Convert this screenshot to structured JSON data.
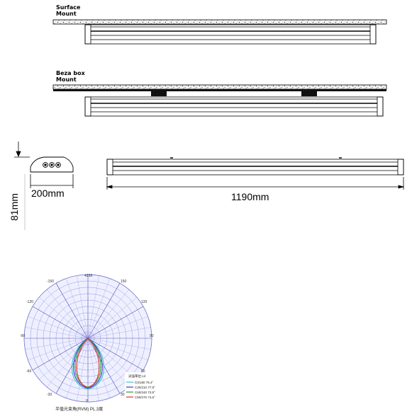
{
  "mounting": {
    "surface": {
      "line1": "Surface",
      "line2": "Mount"
    },
    "beza_box": {
      "line1": "Beza box",
      "line2": "Mount"
    }
  },
  "dimensions": {
    "width": "200mm",
    "height": "81mm",
    "length": "1190mm"
  },
  "polar_plot": {
    "top_value": "4238",
    "angles": {
      "deg_150": "150",
      "deg_minus_150": "-150",
      "deg_120": "120",
      "deg_minus_120": "-120",
      "deg_90": "90",
      "deg_minus_90": "-90",
      "deg_60": "60",
      "deg_minus_60": "-60",
      "deg_30": "30",
      "deg_minus_30": "-30",
      "deg_0": "0"
    },
    "legend": {
      "title": "光強單位:cd",
      "c0": "C0/180 75.4°",
      "c30": "C30/210 77.8°",
      "c60": "C60/240 73.8°",
      "c90": "C90/270 74.6°"
    },
    "caption": "半值光束角(RVM) PL.3度",
    "colors": {
      "c0": "#3fc3c8",
      "c30": "#3a3ad0",
      "c60": "#2ca02c",
      "c90": "#e03030"
    }
  }
}
